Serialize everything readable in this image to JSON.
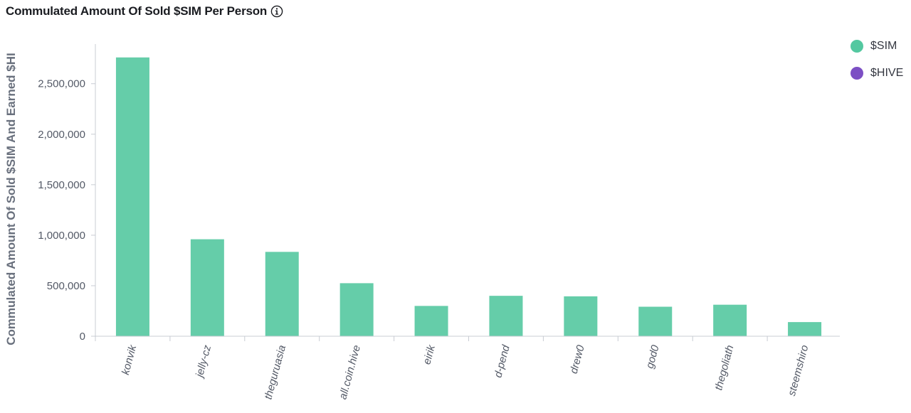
{
  "chart_data": {
    "type": "bar",
    "title": "Commulated Amount Of Sold $SIM Per Person",
    "ylabel": "Commulated Amount Of Sold $SIM And Earned $HI",
    "xlabel": "",
    "categories": [
      "konvik",
      "jelly-cz",
      "theguruasia",
      "all.coin.hive",
      "eirik",
      "d-pend",
      "drew0",
      "god0",
      "thegoliath",
      "steemshiro"
    ],
    "series": [
      {
        "name": "$SIM",
        "color": "#54c8a0",
        "values": [
          2760000,
          960000,
          835000,
          525000,
          300000,
          400000,
          395000,
          292000,
          312000,
          140000
        ]
      },
      {
        "name": "$HIVE",
        "color": "#7c4fc4",
        "values": [
          0,
          0,
          0,
          0,
          0,
          0,
          0,
          0,
          0,
          0
        ]
      }
    ],
    "ylim": [
      0,
      2850000
    ],
    "yticks": [
      0,
      500000,
      1000000,
      1500000,
      2000000,
      2500000
    ],
    "ytick_labels": [
      "0",
      "500,000",
      "1,000,000",
      "1,500,000",
      "2,000,000",
      "2,500,000"
    ],
    "grid": false,
    "legend_position": "right"
  },
  "icons": {
    "info": "info-icon"
  }
}
